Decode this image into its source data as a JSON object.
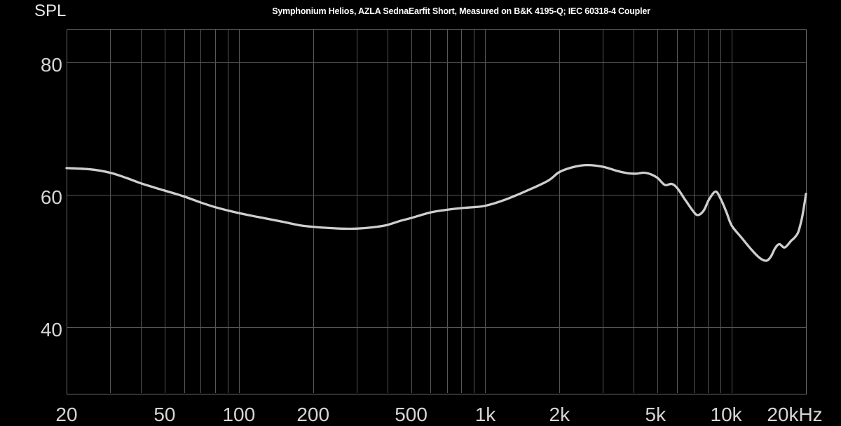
{
  "title": "Symphonium Helios, AZLA SednaEarfit Short, Measured on B&K 4195-Q; IEC 60318-4 Coupler",
  "colors": {
    "background": "#000000",
    "grid": "#565656",
    "border": "#6c6c6c",
    "curve": "#cecece",
    "tick_text": "#d5d5d5",
    "title_text": "#ffffff"
  },
  "chart_data": {
    "type": "line",
    "title": "Symphonium Helios, AZLA SednaEarfit Short, Measured on B&K 4195-Q; IEC 60318-4 Coupler",
    "ylabel": "SPL",
    "xscale": "log",
    "xlim": [
      20,
      20000
    ],
    "ylim": [
      30,
      85
    ],
    "grid": true,
    "legend": "none",
    "x_gridlines": [
      30,
      40,
      50,
      60,
      70,
      80,
      90,
      100,
      200,
      300,
      400,
      500,
      600,
      700,
      800,
      900,
      1000,
      2000,
      3000,
      4000,
      5000,
      6000,
      7000,
      8000,
      9000,
      10000
    ],
    "y_gridlines": [
      40,
      60,
      80
    ],
    "x_ticks": [
      {
        "f": 20,
        "label": "20",
        "dx": 0
      },
      {
        "f": 50,
        "label": "50",
        "dx": 0
      },
      {
        "f": 100,
        "label": "100",
        "dx": 0
      },
      {
        "f": 200,
        "label": "200",
        "dx": 0
      },
      {
        "f": 500,
        "label": "500",
        "dx": 0
      },
      {
        "f": 1000,
        "label": "1k",
        "dx": 0
      },
      {
        "f": 2000,
        "label": "2k",
        "dx": 0
      },
      {
        "f": 5000,
        "label": "5k",
        "dx": -3
      },
      {
        "f": 10000,
        "label": "10k",
        "dx": -8
      },
      {
        "f": 20000,
        "label": "20kHz",
        "dx": -16
      }
    ],
    "y_ticks": [
      {
        "v": 80,
        "label": "80"
      },
      {
        "v": 60,
        "label": "60"
      },
      {
        "v": 40,
        "label": "40"
      }
    ],
    "series": [
      {
        "name": "Symphonium Helios",
        "points": [
          [
            20,
            64.0
          ],
          [
            25,
            63.8
          ],
          [
            30,
            63.3
          ],
          [
            35,
            62.5
          ],
          [
            40,
            61.7
          ],
          [
            45,
            61.1
          ],
          [
            50,
            60.6
          ],
          [
            60,
            59.7
          ],
          [
            70,
            58.8
          ],
          [
            80,
            58.1
          ],
          [
            90,
            57.6
          ],
          [
            100,
            57.2
          ],
          [
            120,
            56.6
          ],
          [
            150,
            55.9
          ],
          [
            180,
            55.3
          ],
          [
            220,
            55.0
          ],
          [
            260,
            54.85
          ],
          [
            300,
            54.85
          ],
          [
            350,
            55.05
          ],
          [
            400,
            55.4
          ],
          [
            450,
            56.0
          ],
          [
            500,
            56.45
          ],
          [
            600,
            57.3
          ],
          [
            700,
            57.7
          ],
          [
            800,
            57.95
          ],
          [
            900,
            58.1
          ],
          [
            1000,
            58.3
          ],
          [
            1200,
            59.2
          ],
          [
            1500,
            60.7
          ],
          [
            1800,
            62.1
          ],
          [
            2000,
            63.4
          ],
          [
            2300,
            64.2
          ],
          [
            2600,
            64.45
          ],
          [
            3000,
            64.2
          ],
          [
            3400,
            63.6
          ],
          [
            3800,
            63.2
          ],
          [
            4100,
            63.15
          ],
          [
            4400,
            63.3
          ],
          [
            4700,
            63.05
          ],
          [
            5000,
            62.5
          ],
          [
            5350,
            61.45
          ],
          [
            5700,
            61.6
          ],
          [
            6000,
            61.0
          ],
          [
            6500,
            59.1
          ],
          [
            7000,
            57.4
          ],
          [
            7300,
            56.9
          ],
          [
            7700,
            57.6
          ],
          [
            8100,
            59.3
          ],
          [
            8600,
            60.45
          ],
          [
            9000,
            59.4
          ],
          [
            9500,
            57.4
          ],
          [
            10000,
            55.3
          ],
          [
            11000,
            53.4
          ],
          [
            12000,
            51.7
          ],
          [
            13000,
            50.4
          ],
          [
            13800,
            50.0
          ],
          [
            14400,
            50.6
          ],
          [
            15000,
            51.9
          ],
          [
            15600,
            52.5
          ],
          [
            16400,
            52.0
          ],
          [
            17400,
            53.0
          ],
          [
            18000,
            53.5
          ],
          [
            18600,
            54.3
          ],
          [
            19200,
            56.2
          ],
          [
            19600,
            58.0
          ],
          [
            20000,
            60.1
          ]
        ]
      }
    ]
  }
}
